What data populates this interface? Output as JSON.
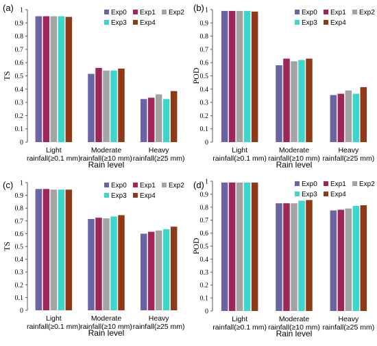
{
  "legend_names": [
    "Exp0",
    "Exp1",
    "Exp2",
    "Exp3",
    "Exp4"
  ],
  "colors": [
    "#6b63a3",
    "#a0255a",
    "#a3a3a3",
    "#3dd6cc",
    "#8f3a16"
  ],
  "chart_data": [
    {
      "panel": "(a)",
      "type": "bar",
      "categories": [
        "Light rainfall(≥0.1 mm)",
        "Moderate rainfall(≥10 mm)",
        "Heavy rainfall(≥25 mm)"
      ],
      "series": [
        {
          "name": "Exp0",
          "values": [
            0.95,
            0.515,
            0.325
          ]
        },
        {
          "name": "Exp1",
          "values": [
            0.95,
            0.56,
            0.335
          ]
        },
        {
          "name": "Exp2",
          "values": [
            0.95,
            0.54,
            0.36
          ]
        },
        {
          "name": "Exp3",
          "values": [
            0.95,
            0.54,
            0.325
          ]
        },
        {
          "name": "Exp4",
          "values": [
            0.945,
            0.555,
            0.385
          ]
        }
      ],
      "xlabel": "Rain level",
      "ylabel": "TS",
      "ylim": [
        0,
        1
      ],
      "yticks": [
        "0",
        "0.1",
        "0.2",
        "0.3",
        "0.4",
        "0.5",
        "0.6",
        "0.7",
        "0.8",
        "0.9",
        "1"
      ],
      "legend": "top-right",
      "grid": false
    },
    {
      "panel": "(b)",
      "type": "bar",
      "categories": [
        "Light rainfall(≥0.1 mm)",
        "Moderate rainfall(≥10 mm)",
        "Heavy rainfall(≥25 mm)"
      ],
      "series": [
        {
          "name": "Exp0",
          "values": [
            0.99,
            0.58,
            0.355
          ]
        },
        {
          "name": "Exp1",
          "values": [
            0.99,
            0.63,
            0.365
          ]
        },
        {
          "name": "Exp2",
          "values": [
            0.99,
            0.61,
            0.39
          ]
        },
        {
          "name": "Exp3",
          "values": [
            0.99,
            0.62,
            0.365
          ]
        },
        {
          "name": "Exp4",
          "values": [
            0.985,
            0.63,
            0.415
          ]
        }
      ],
      "xlabel": "Rain level",
      "ylabel": "POD",
      "ylim": [
        0,
        1
      ],
      "yticks": [
        "0",
        "0.1",
        "0.2",
        "0.3",
        "0.4",
        "0.5",
        "0.6",
        "0.7",
        "0.8",
        "0.9",
        "1"
      ],
      "legend": "top-right",
      "grid": false
    },
    {
      "panel": "(c)",
      "type": "bar",
      "categories": [
        "Light rainfall(≥0.1 mm)",
        "Moderate rainfall(≥10 mm)",
        "Heavy rainfall(≥25 mm)"
      ],
      "series": [
        {
          "name": "Exp0",
          "values": [
            0.95,
            0.715,
            0.6
          ]
        },
        {
          "name": "Exp1",
          "values": [
            0.95,
            0.725,
            0.615
          ]
        },
        {
          "name": "Exp2",
          "values": [
            0.945,
            0.72,
            0.625
          ]
        },
        {
          "name": "Exp3",
          "values": [
            0.945,
            0.735,
            0.635
          ]
        },
        {
          "name": "Exp4",
          "values": [
            0.945,
            0.745,
            0.655
          ]
        }
      ],
      "xlabel": "Rain level",
      "ylabel": "TS",
      "ylim": [
        0,
        1
      ],
      "yticks": [
        "0",
        "0.1",
        "0.2",
        "0.3",
        "0.4",
        "0.5",
        "0.6",
        "0.7",
        "0.8",
        "0.9",
        "1"
      ],
      "legend": "top-right",
      "grid": false
    },
    {
      "panel": "(d)",
      "type": "bar",
      "categories": [
        "Light rainfall(≥0.1 mm)",
        "Moderate rainfall(≥10 mm)",
        "Heavy rainfall(≥25 mm)"
      ],
      "series": [
        {
          "name": "Exp0",
          "values": [
            0.99,
            0.83,
            0.775
          ]
        },
        {
          "name": "Exp1",
          "values": [
            0.99,
            0.83,
            0.78
          ]
        },
        {
          "name": "Exp2",
          "values": [
            0.99,
            0.83,
            0.79
          ]
        },
        {
          "name": "Exp3",
          "values": [
            0.99,
            0.85,
            0.81
          ]
        },
        {
          "name": "Exp4",
          "values": [
            0.99,
            0.855,
            0.815
          ]
        }
      ],
      "xlabel": "Rain level",
      "ylabel": "POD",
      "ylim": [
        0,
        1
      ],
      "yticks": [
        "0",
        "0.1",
        "0.2",
        "0.3",
        "0.4",
        "0.5",
        "0.6",
        "0.7",
        "0.8",
        "0.9",
        "1"
      ],
      "legend": "top-right",
      "grid": false
    }
  ]
}
